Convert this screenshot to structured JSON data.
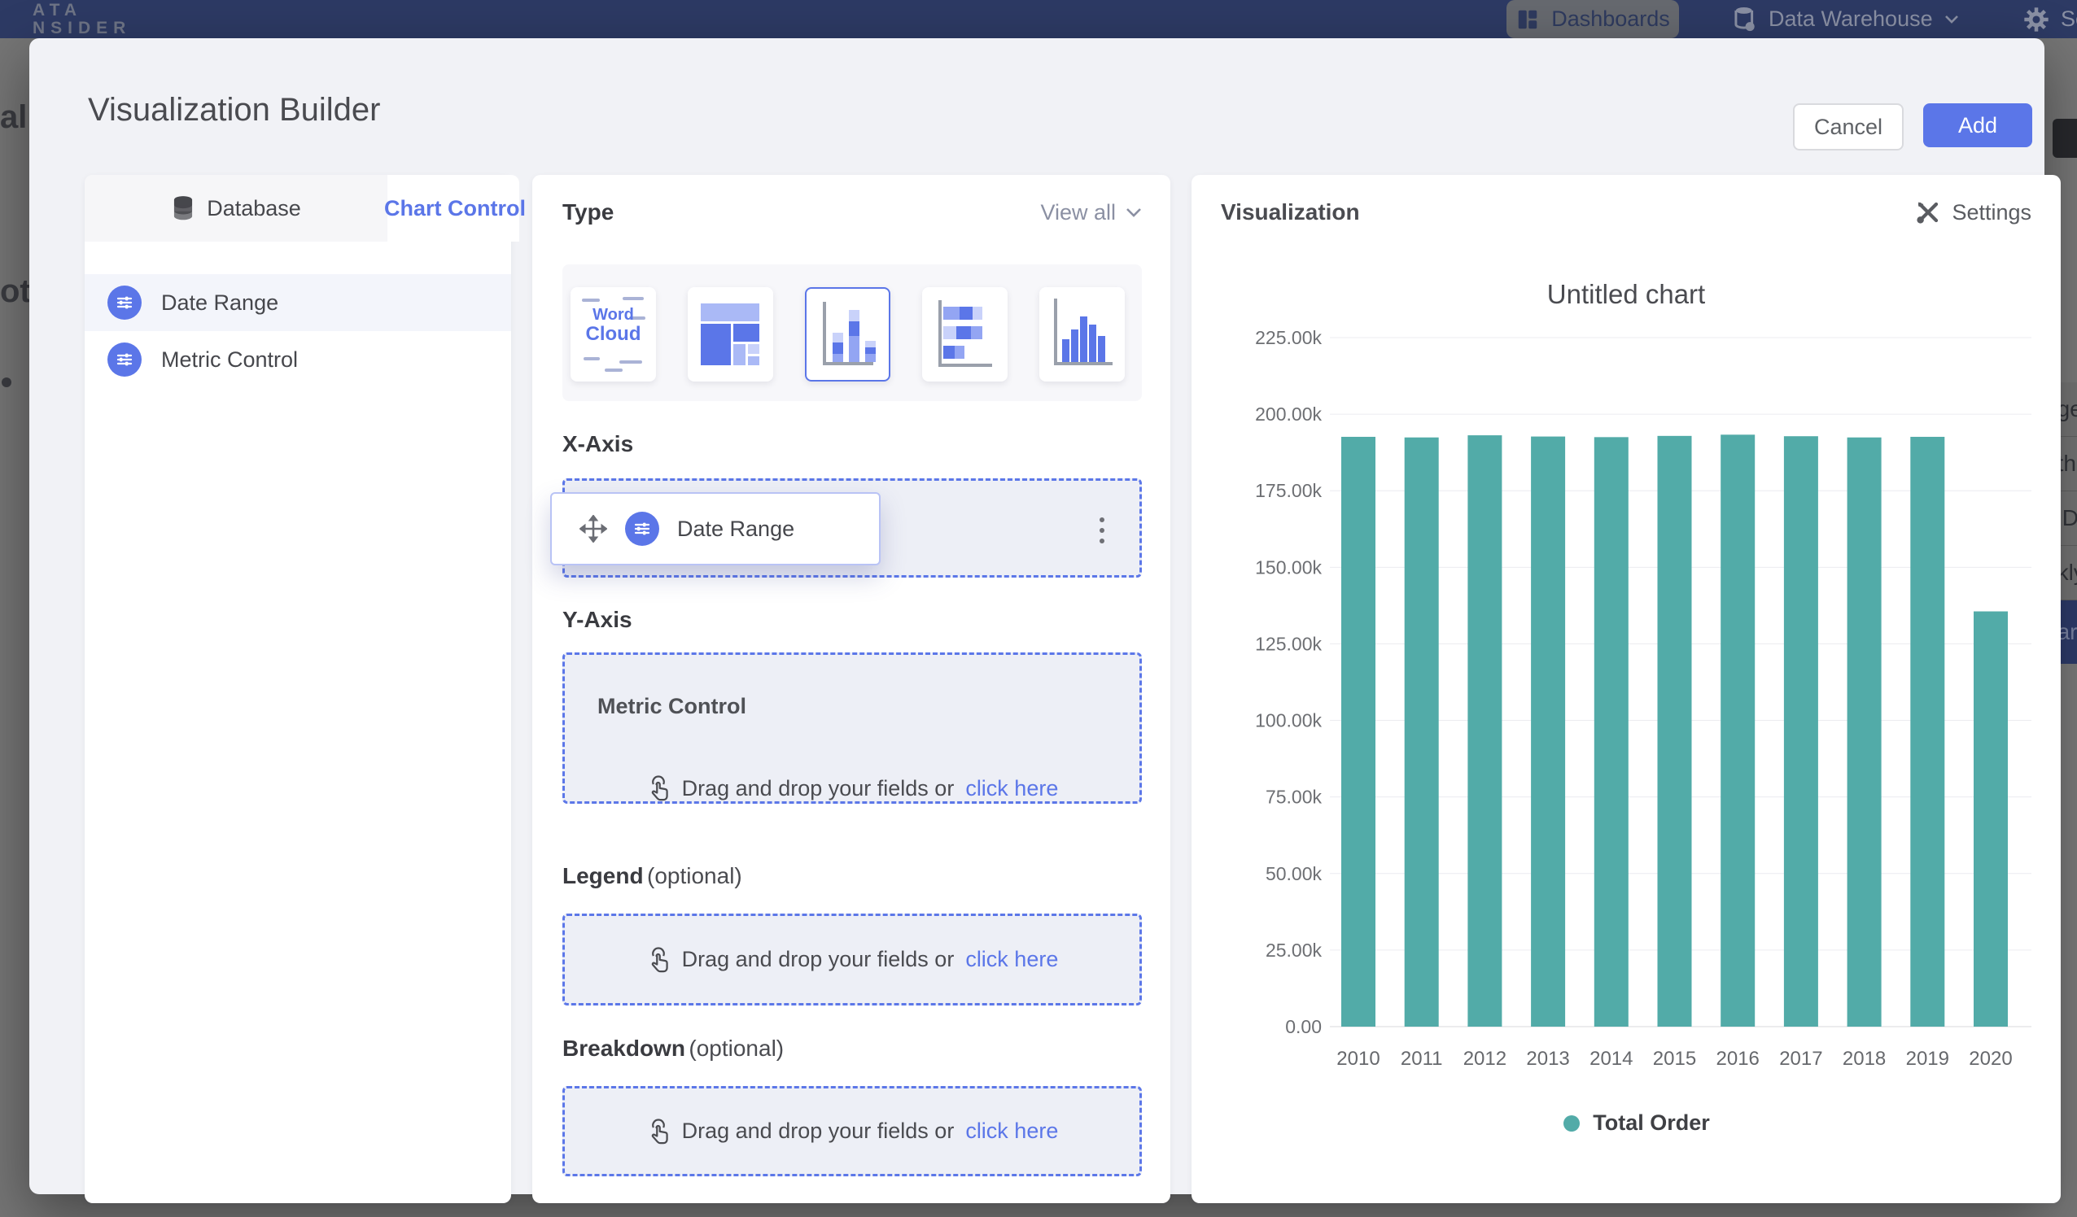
{
  "colors": {
    "accent": "#5B76E8",
    "bar": "#52ABA8",
    "navy": "#2D3A64"
  },
  "background": {
    "logo_line1": "ATA",
    "logo_line2": "NSIDER",
    "nav": {
      "dashboards": "Dashboards",
      "data_warehouse": "Data Warehouse",
      "settings": "Setti"
    },
    "left_fragments": {
      "frag1": "al",
      "frag2": "ota"
    },
    "right_menu": {
      "items": [
        "nge",
        "nthly",
        "k Date",
        "ekly"
      ],
      "selected": "ear"
    }
  },
  "modal": {
    "title": "Visualization Builder",
    "cancel_label": "Cancel",
    "add_label": "Add",
    "left_panel": {
      "tab_database": "Database",
      "tab_chart_control": "Chart Control",
      "fields": [
        "Date Range",
        "Metric Control"
      ],
      "highlighted_field": "Date Range"
    },
    "builder": {
      "type_label": "Type",
      "view_all": "View all",
      "chart_types": [
        "word-cloud",
        "treemap",
        "stacked-column",
        "horizontal-stacked-bar",
        "histogram"
      ],
      "selected_type_index": 2,
      "word_cloud": {
        "word1": "Word",
        "word2": "Cloud"
      },
      "x_axis": {
        "label": "X-Axis",
        "chip_label": "Date Range",
        "ghost_label": "Date Range"
      },
      "y_axis": {
        "label": "Y-Axis",
        "control_title": "Metric Control",
        "drop_text": "Drag and drop your fields or",
        "drop_link": "click here"
      },
      "legend": {
        "label": "Legend",
        "optional": "(optional)",
        "drop_text": "Drag and drop your fields or",
        "drop_link": "click here"
      },
      "breakdown": {
        "label": "Breakdown",
        "optional": "(optional)",
        "drop_text": "Drag and drop your fields or",
        "drop_link": "click here"
      }
    },
    "visualization": {
      "header": "Visualization",
      "settings_label": "Settings"
    }
  },
  "chart_data": {
    "type": "bar",
    "title": "Untitled chart",
    "categories": [
      "2010",
      "2011",
      "2012",
      "2013",
      "2014",
      "2015",
      "2016",
      "2017",
      "2018",
      "2019",
      "2020"
    ],
    "series": [
      {
        "name": "Total Order",
        "values": [
          192600,
          192400,
          193100,
          192700,
          192500,
          192900,
          193300,
          192800,
          192400,
          192600,
          135600
        ]
      }
    ],
    "ylim": [
      0,
      225000
    ],
    "ytick_labels": [
      "225.00k",
      "200.00k",
      "175.00k",
      "150.00k",
      "125.00k",
      "100.00k",
      "75.00k",
      "50.00k",
      "25.00k",
      "0.00"
    ],
    "grid": true,
    "bar_color": "#52ABA8",
    "legend": [
      "Total Order"
    ],
    "legend_position": "bottom"
  }
}
